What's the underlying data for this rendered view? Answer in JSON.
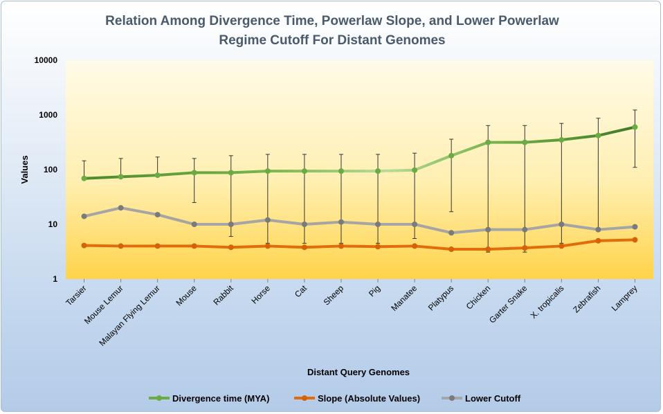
{
  "chart_data": {
    "type": "line",
    "title_line1": "Relation Among Divergence Time, Powerlaw Slope, and Lower Powerlaw",
    "title_line2": "Regime Cutoff For Distant Genomes",
    "xlabel": "Distant Query Genomes",
    "ylabel": "Values",
    "yscale": "log",
    "ylim": [
      1,
      10000
    ],
    "yticks": [
      "1",
      "10",
      "100",
      "1000",
      "10000"
    ],
    "categories": [
      "Tarsier",
      "Mouse Lemur",
      "Malayan Flying Lemur",
      "Mouse",
      "Rabbit",
      "Horse",
      "Cat",
      "Sheep",
      "Pig",
      "Manatee",
      "Platypus",
      "Chicken",
      "Garter Snake",
      "X. tropicalis",
      "Zebrafish",
      "Lamprey"
    ],
    "grid": false,
    "legend_position": "bottom",
    "series": [
      {
        "name": "Divergence time (MYA)",
        "color": "#70ad47",
        "values": [
          69,
          74,
          79,
          88,
          88,
          94,
          94,
          94,
          94,
          98,
          180,
          315,
          315,
          350,
          420,
          600
        ],
        "error_low": [
          69,
          74,
          79,
          25,
          6,
          4.5,
          4.5,
          4.5,
          4.5,
          5.5,
          17,
          3.1,
          3.1,
          4.5,
          7.5,
          110
        ],
        "error_high": [
          145,
          160,
          170,
          160,
          180,
          190,
          190,
          190,
          190,
          200,
          360,
          640,
          640,
          700,
          870,
          1230
        ]
      },
      {
        "name": "Slope (Absolute Values)",
        "color": "#e36c0a",
        "values": [
          4.1,
          4.0,
          4.0,
          4.0,
          3.8,
          4.0,
          3.8,
          4.0,
          3.9,
          4.0,
          3.5,
          3.5,
          3.7,
          4.0,
          5.0,
          5.2
        ]
      },
      {
        "name": "Lower Cutoff",
        "color": "#a5a5a5",
        "values": [
          14,
          20,
          15,
          10,
          10,
          12,
          10,
          11,
          10,
          10,
          7,
          8,
          8,
          10,
          8,
          9
        ]
      }
    ]
  }
}
